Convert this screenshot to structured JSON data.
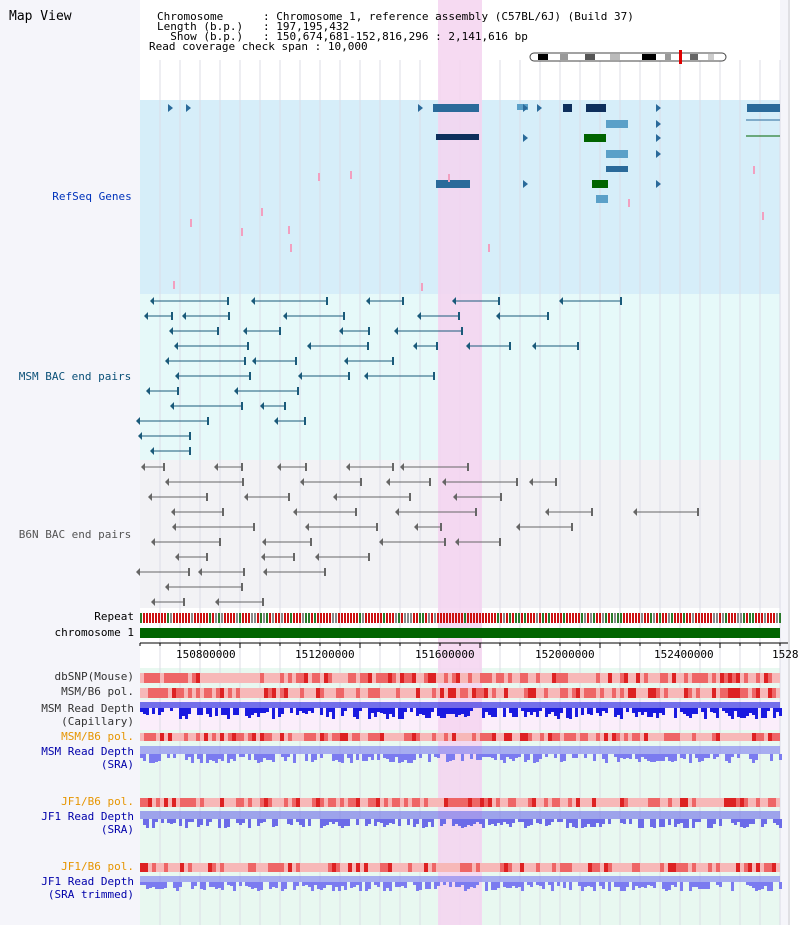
{
  "title": "Map View",
  "header": {
    "lines": [
      {
        "key": "Chromosome     ",
        "value": "Chromosome 1, reference assembly (C57BL/6J) (Build 37)"
      },
      {
        "key": "Length (b.p.)  ",
        "value": "197,195,432"
      },
      {
        "key": "  Show (b.p.)  ",
        "value": "150,674,681-152,816,296 : 2,141,616 bp"
      },
      {
        "key": "Read coverage check span",
        "value": "10,000"
      }
    ]
  },
  "tracks": {
    "refseq": "RefSeq Genes",
    "msm_bac": "MSM BAC end pairs",
    "b6n_bac": "B6N BAC end pairs",
    "repeat": "Repeat",
    "chromosome": "chromosome 1",
    "dbsnp": "dbSNP(Mouse)",
    "msm_b6_pol": "MSM/B6 pol.",
    "msm_depth_cap_1": "MSM Read Depth",
    "msm_depth_cap_2": "(Capillary)",
    "msm_b6_pol_2": "MSM/B6 pol.",
    "msm_depth_sra_1": "MSM Read Depth",
    "msm_depth_sra_2": "(SRA)",
    "jf1_b6_pol": "JF1/B6 pol.",
    "jf1_depth_sra_1": "JF1 Read Depth",
    "jf1_depth_sra_2": "(SRA)",
    "jf1_b6_pol_2": "JF1/B6 pol.",
    "jf1_depth_trim_1": "JF1 Read Depth",
    "jf1_depth_trim_2": "(SRA trimmed)"
  },
  "axis": {
    "ticks": [
      "150800000",
      "151200000",
      "151600000",
      "152000000",
      "152400000",
      "1528"
    ]
  },
  "colors": {
    "refseq_bg": "#d6eef9",
    "bac_bg": "#e6f9f9",
    "b6n_bg": "#f2f2f5",
    "highlight": "#f5d4f0",
    "chromosome": "#006400",
    "refseq_gene": "#0e2f5c",
    "msm_pair": "#1a5a7a",
    "b6n_pair": "#666666",
    "label_orange": "#e69500",
    "label_blue": "#0000aa",
    "label_msm": "#0a5078",
    "label_refseq": "#0033bb"
  }
}
